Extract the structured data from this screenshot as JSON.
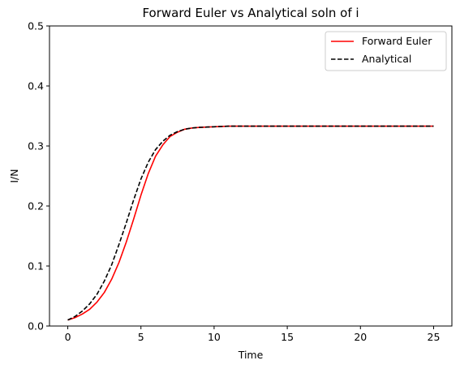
{
  "chart_data": {
    "type": "line",
    "title": "Forward Euler vs Analytical soln of i",
    "xlabel": "Time",
    "ylabel": "I/N",
    "xlim": [
      -1.25,
      26.25
    ],
    "ylim": [
      0,
      0.5
    ],
    "xticks": [
      0,
      5,
      10,
      15,
      20,
      25
    ],
    "yticks": [
      0.0,
      0.1,
      0.2,
      0.3,
      0.4,
      0.5
    ],
    "xtick_labels": [
      "0",
      "5",
      "10",
      "15",
      "20",
      "25"
    ],
    "ytick_labels": [
      "0.0",
      "0.1",
      "0.2",
      "0.3",
      "0.4",
      "0.5"
    ],
    "grid": false,
    "legend_position": "upper right",
    "series": [
      {
        "name": "Forward Euler",
        "color": "#ff0000",
        "style": "solid",
        "x": [
          0,
          0.5,
          1,
          1.5,
          2,
          2.5,
          3,
          3.5,
          4,
          4.5,
          5,
          5.5,
          6,
          6.5,
          7,
          7.5,
          8,
          8.5,
          9,
          10,
          11,
          12,
          13,
          15,
          17,
          20,
          23,
          25
        ],
        "y": [
          0.01,
          0.014,
          0.02,
          0.028,
          0.04,
          0.056,
          0.078,
          0.106,
          0.14,
          0.178,
          0.218,
          0.254,
          0.283,
          0.302,
          0.316,
          0.323,
          0.328,
          0.33,
          0.331,
          0.332,
          0.333,
          0.333,
          0.333,
          0.333,
          0.333,
          0.333,
          0.333,
          0.333
        ]
      },
      {
        "name": "Analytical",
        "color": "#000000",
        "style": "dashed",
        "x": [
          0,
          0.5,
          1,
          1.5,
          2,
          2.5,
          3,
          3.5,
          4,
          4.5,
          5,
          5.5,
          6,
          6.5,
          7,
          7.5,
          8,
          8.5,
          9,
          10,
          11,
          12,
          13,
          15,
          17,
          20,
          23,
          25
        ],
        "y": [
          0.01,
          0.016,
          0.025,
          0.037,
          0.053,
          0.075,
          0.102,
          0.136,
          0.172,
          0.21,
          0.245,
          0.273,
          0.294,
          0.308,
          0.318,
          0.324,
          0.328,
          0.33,
          0.331,
          0.332,
          0.333,
          0.333,
          0.333,
          0.333,
          0.333,
          0.333,
          0.333,
          0.333
        ]
      }
    ]
  }
}
